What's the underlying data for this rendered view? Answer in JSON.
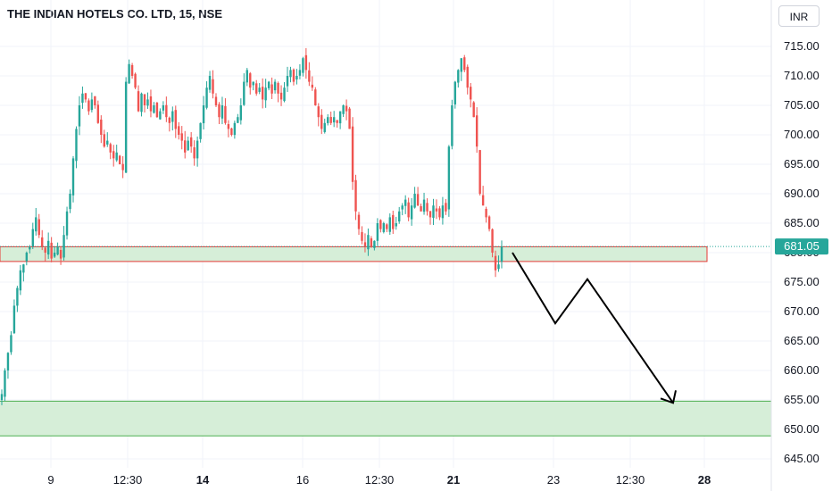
{
  "title": "THE INDIAN HOTELS CO. LTD, 15, NSE",
  "currency": "INR",
  "chart_data": {
    "type": "candlestick",
    "title": "THE INDIAN HOTELS CO. LTD, 15, NSE",
    "interval": "15",
    "exchange": "NSE",
    "ylim": [
      645,
      718
    ],
    "y_ticks": [
      "715.00",
      "710.00",
      "705.00",
      "700.00",
      "695.00",
      "690.00",
      "685.00",
      "680.00",
      "675.00",
      "670.00",
      "665.00",
      "660.00",
      "655.00",
      "650.00",
      "645.00"
    ],
    "x_ticks": [
      {
        "label": "9",
        "bold": false
      },
      {
        "label": "12:30",
        "bold": false
      },
      {
        "label": "14",
        "bold": true
      },
      {
        "label": "16",
        "bold": false
      },
      {
        "label": "12:30",
        "bold": false
      },
      {
        "label": "21",
        "bold": true
      },
      {
        "label": "23",
        "bold": false
      },
      {
        "label": "12:30",
        "bold": false
      },
      {
        "label": "28",
        "bold": true
      }
    ],
    "last_price": "681.05",
    "colors": {
      "up": "#26a69a",
      "down": "#ef5350",
      "zone_fill": "#d6eed8",
      "zone_red": "#e53935",
      "zone_green": "#4caf50",
      "projection": "#000000"
    },
    "zones": [
      {
        "name": "resistance-zone",
        "y_top": 681.0,
        "y_bottom": 678.5,
        "border": "red"
      },
      {
        "name": "demand-zone",
        "y_top": 654.8,
        "y_bottom": 648.9,
        "border": "green"
      }
    ],
    "projection_path": [
      680.0,
      668.0,
      675.5,
      654.5
    ],
    "close_path": [
      [
        0,
        656
      ],
      [
        1,
        660
      ],
      [
        2,
        663
      ],
      [
        3,
        666
      ],
      [
        4,
        671
      ],
      [
        5,
        674
      ],
      [
        6,
        677
      ],
      [
        7,
        678
      ],
      [
        8,
        680
      ],
      [
        9,
        681
      ],
      [
        10,
        684
      ],
      [
        11,
        686
      ],
      [
        12,
        683
      ],
      [
        13,
        681
      ],
      [
        14,
        680
      ],
      [
        15,
        682
      ],
      [
        16,
        679
      ],
      [
        17,
        680
      ],
      [
        18,
        681
      ],
      [
        19,
        679
      ],
      [
        20,
        683
      ],
      [
        21,
        687
      ],
      [
        22,
        690
      ],
      [
        23,
        696
      ],
      [
        24,
        701
      ],
      [
        25,
        705
      ],
      [
        26,
        707
      ],
      [
        27,
        706
      ],
      [
        28,
        704
      ],
      [
        29,
        706
      ],
      [
        30,
        705
      ],
      [
        31,
        702
      ],
      [
        32,
        700
      ],
      [
        33,
        698
      ],
      [
        34,
        699
      ],
      [
        35,
        697
      ],
      [
        36,
        696
      ],
      [
        37,
        697
      ],
      [
        38,
        695
      ],
      [
        39,
        694
      ],
      [
        40,
        709
      ],
      [
        41,
        712
      ],
      [
        42,
        710
      ],
      [
        43,
        708
      ],
      [
        44,
        704
      ],
      [
        45,
        707
      ],
      [
        46,
        705
      ],
      [
        47,
        706
      ],
      [
        48,
        704
      ],
      [
        49,
        705
      ],
      [
        50,
        703
      ],
      [
        51,
        704
      ],
      [
        52,
        705
      ],
      [
        53,
        703
      ],
      [
        54,
        702
      ],
      [
        55,
        704
      ],
      [
        56,
        701
      ],
      [
        57,
        700
      ],
      [
        58,
        699
      ],
      [
        59,
        697
      ],
      [
        60,
        699
      ],
      [
        61,
        698
      ],
      [
        62,
        696
      ],
      [
        63,
        699
      ],
      [
        64,
        702
      ],
      [
        65,
        705
      ],
      [
        66,
        708
      ],
      [
        67,
        710
      ],
      [
        68,
        707
      ],
      [
        69,
        705
      ],
      [
        70,
        703
      ],
      [
        71,
        705
      ],
      [
        72,
        702
      ],
      [
        73,
        701
      ],
      [
        74,
        700
      ],
      [
        75,
        702
      ],
      [
        76,
        703
      ],
      [
        77,
        705
      ],
      [
        78,
        709
      ],
      [
        79,
        711
      ],
      [
        80,
        708
      ],
      [
        81,
        709
      ],
      [
        82,
        707
      ],
      [
        83,
        708
      ],
      [
        84,
        706
      ],
      [
        85,
        708
      ],
      [
        86,
        709
      ],
      [
        87,
        707
      ],
      [
        88,
        709
      ],
      [
        89,
        707
      ],
      [
        90,
        706
      ],
      [
        91,
        708
      ],
      [
        92,
        710
      ],
      [
        93,
        711
      ],
      [
        94,
        709
      ],
      [
        95,
        710
      ],
      [
        96,
        711
      ],
      [
        97,
        713
      ],
      [
        98,
        711
      ],
      [
        99,
        709
      ],
      [
        100,
        708
      ],
      [
        101,
        705
      ],
      [
        102,
        703
      ],
      [
        103,
        701
      ],
      [
        104,
        702
      ],
      [
        105,
        703
      ],
      [
        106,
        702
      ],
      [
        107,
        703
      ],
      [
        108,
        702
      ],
      [
        109,
        704
      ],
      [
        110,
        705
      ],
      [
        111,
        704
      ],
      [
        112,
        701
      ],
      [
        113,
        692
      ],
      [
        114,
        687
      ],
      [
        115,
        684
      ],
      [
        116,
        682
      ],
      [
        117,
        681
      ],
      [
        118,
        683
      ],
      [
        119,
        681
      ],
      [
        120,
        682
      ],
      [
        121,
        685
      ],
      [
        122,
        684
      ],
      [
        123,
        685
      ],
      [
        124,
        684
      ],
      [
        125,
        686
      ],
      [
        126,
        684
      ],
      [
        127,
        685
      ],
      [
        128,
        687
      ],
      [
        129,
        688
      ],
      [
        130,
        689
      ],
      [
        131,
        686
      ],
      [
        132,
        688
      ],
      [
        133,
        690
      ],
      [
        134,
        688
      ],
      [
        135,
        687
      ],
      [
        136,
        689
      ],
      [
        137,
        687
      ],
      [
        138,
        686
      ],
      [
        139,
        688
      ],
      [
        140,
        687
      ],
      [
        141,
        686
      ],
      [
        142,
        688
      ],
      [
        143,
        687
      ],
      [
        144,
        698
      ],
      [
        145,
        705
      ],
      [
        146,
        709
      ],
      [
        147,
        711
      ],
      [
        148,
        713
      ],
      [
        149,
        711
      ],
      [
        150,
        708
      ],
      [
        151,
        706
      ],
      [
        152,
        703
      ],
      [
        153,
        698
      ],
      [
        154,
        690
      ],
      [
        155,
        688
      ],
      [
        156,
        686
      ],
      [
        157,
        684
      ],
      [
        158,
        680
      ],
      [
        159,
        677
      ],
      [
        160,
        678
      ],
      [
        161,
        681
      ]
    ]
  }
}
